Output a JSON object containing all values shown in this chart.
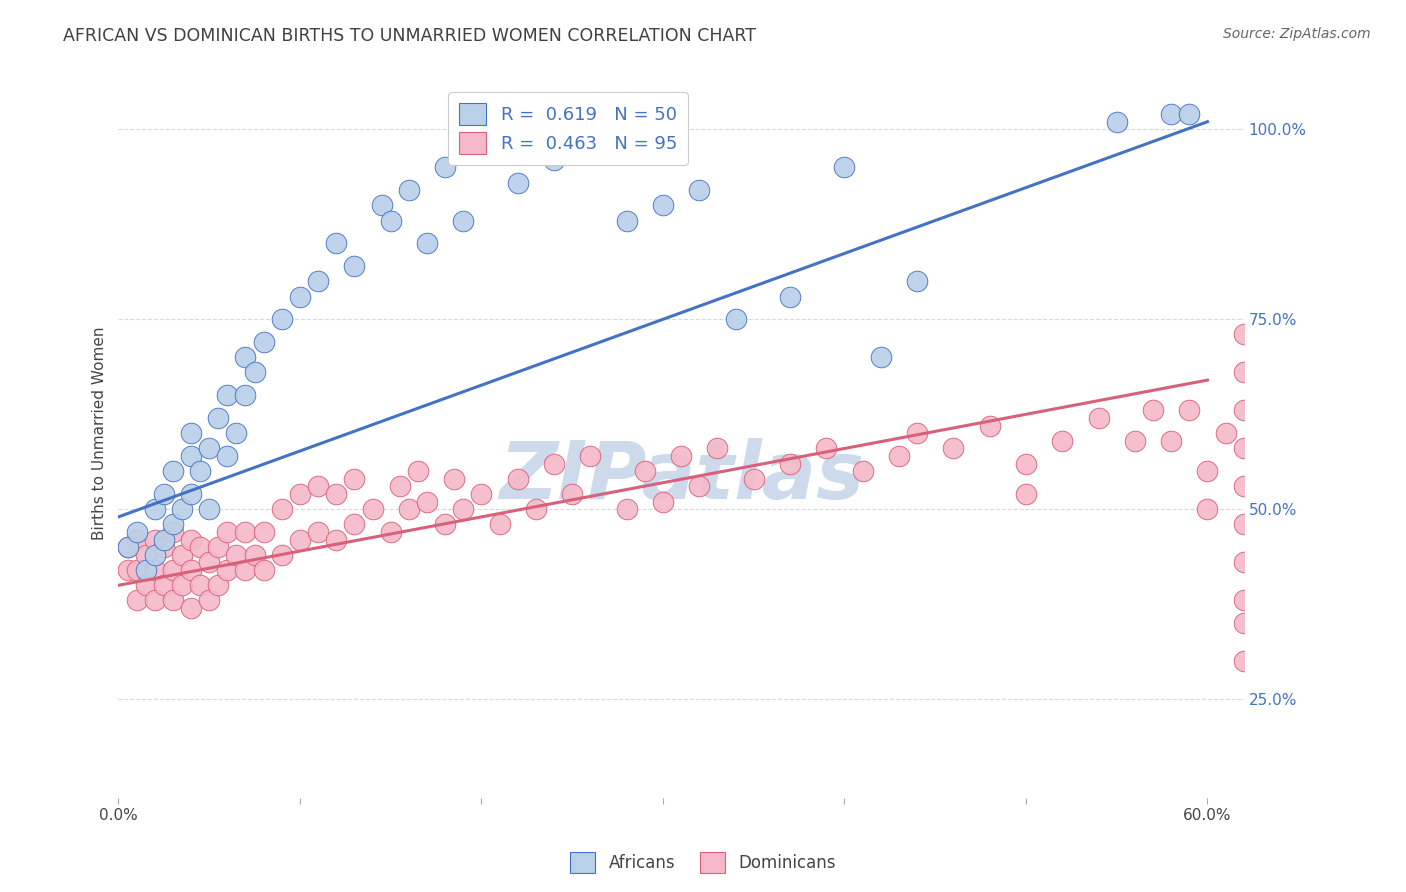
{
  "title": "AFRICAN VS DOMINICAN BIRTHS TO UNMARRIED WOMEN CORRELATION CHART",
  "source": "Source: ZipAtlas.com",
  "ylabel": "Births to Unmarried Women",
  "xlim": [
    0.0,
    0.62
  ],
  "ylim": [
    0.12,
    1.08
  ],
  "african_R": 0.619,
  "african_N": 50,
  "dominican_R": 0.463,
  "dominican_N": 95,
  "african_color": "#b8d0e8",
  "dominican_color": "#f5b8c8",
  "african_line_color": "#4472c4",
  "dominican_line_color": "#d9607a",
  "title_color": "#404040",
  "source_color": "#666666",
  "legend_text_color": "#4472c4",
  "watermark_text": "ZIPatlas",
  "watermark_color": "#ccdaeb",
  "background_color": "#ffffff",
  "grid_color": "#d8d8d8",
  "african_line_y0": 0.49,
  "african_line_y1": 1.01,
  "dominican_line_y0": 0.4,
  "dominican_line_y1": 0.67,
  "african_x": [
    0.005,
    0.01,
    0.015,
    0.02,
    0.02,
    0.025,
    0.025,
    0.03,
    0.03,
    0.035,
    0.04,
    0.04,
    0.04,
    0.045,
    0.05,
    0.05,
    0.055,
    0.06,
    0.06,
    0.065,
    0.07,
    0.07,
    0.075,
    0.08,
    0.09,
    0.1,
    0.11,
    0.12,
    0.13,
    0.145,
    0.15,
    0.16,
    0.17,
    0.18,
    0.19,
    0.22,
    0.24,
    0.25,
    0.27,
    0.28,
    0.3,
    0.32,
    0.34,
    0.37,
    0.4,
    0.42,
    0.44,
    0.55,
    0.58,
    0.59
  ],
  "african_y": [
    0.45,
    0.47,
    0.42,
    0.44,
    0.5,
    0.46,
    0.52,
    0.48,
    0.55,
    0.5,
    0.52,
    0.57,
    0.6,
    0.55,
    0.5,
    0.58,
    0.62,
    0.57,
    0.65,
    0.6,
    0.65,
    0.7,
    0.68,
    0.72,
    0.75,
    0.78,
    0.8,
    0.85,
    0.82,
    0.9,
    0.88,
    0.92,
    0.85,
    0.95,
    0.88,
    0.93,
    0.96,
    0.97,
    0.97,
    0.88,
    0.9,
    0.92,
    0.75,
    0.78,
    0.95,
    0.7,
    0.8,
    1.01,
    1.02,
    1.02
  ],
  "dominican_x": [
    0.005,
    0.005,
    0.01,
    0.01,
    0.01,
    0.015,
    0.015,
    0.02,
    0.02,
    0.02,
    0.025,
    0.025,
    0.03,
    0.03,
    0.03,
    0.035,
    0.035,
    0.04,
    0.04,
    0.04,
    0.045,
    0.045,
    0.05,
    0.05,
    0.055,
    0.055,
    0.06,
    0.06,
    0.065,
    0.07,
    0.07,
    0.075,
    0.08,
    0.08,
    0.09,
    0.09,
    0.1,
    0.1,
    0.11,
    0.11,
    0.12,
    0.12,
    0.13,
    0.13,
    0.14,
    0.15,
    0.155,
    0.16,
    0.165,
    0.17,
    0.18,
    0.185,
    0.19,
    0.2,
    0.21,
    0.22,
    0.23,
    0.24,
    0.25,
    0.26,
    0.28,
    0.29,
    0.3,
    0.31,
    0.32,
    0.33,
    0.35,
    0.37,
    0.39,
    0.41,
    0.43,
    0.44,
    0.46,
    0.48,
    0.5,
    0.5,
    0.52,
    0.54,
    0.56,
    0.57,
    0.58,
    0.59,
    0.6,
    0.6,
    0.61,
    0.62,
    0.62,
    0.62,
    0.62,
    0.62,
    0.62,
    0.62,
    0.62,
    0.62,
    0.62
  ],
  "dominican_y": [
    0.42,
    0.45,
    0.38,
    0.42,
    0.46,
    0.4,
    0.44,
    0.38,
    0.42,
    0.46,
    0.4,
    0.45,
    0.38,
    0.42,
    0.47,
    0.4,
    0.44,
    0.37,
    0.42,
    0.46,
    0.4,
    0.45,
    0.38,
    0.43,
    0.4,
    0.45,
    0.42,
    0.47,
    0.44,
    0.42,
    0.47,
    0.44,
    0.42,
    0.47,
    0.44,
    0.5,
    0.46,
    0.52,
    0.47,
    0.53,
    0.46,
    0.52,
    0.48,
    0.54,
    0.5,
    0.47,
    0.53,
    0.5,
    0.55,
    0.51,
    0.48,
    0.54,
    0.5,
    0.52,
    0.48,
    0.54,
    0.5,
    0.56,
    0.52,
    0.57,
    0.5,
    0.55,
    0.51,
    0.57,
    0.53,
    0.58,
    0.54,
    0.56,
    0.58,
    0.55,
    0.57,
    0.6,
    0.58,
    0.61,
    0.52,
    0.56,
    0.59,
    0.62,
    0.59,
    0.63,
    0.59,
    0.63,
    0.5,
    0.55,
    0.6,
    0.3,
    0.35,
    0.38,
    0.43,
    0.48,
    0.53,
    0.58,
    0.63,
    0.68,
    0.73
  ]
}
